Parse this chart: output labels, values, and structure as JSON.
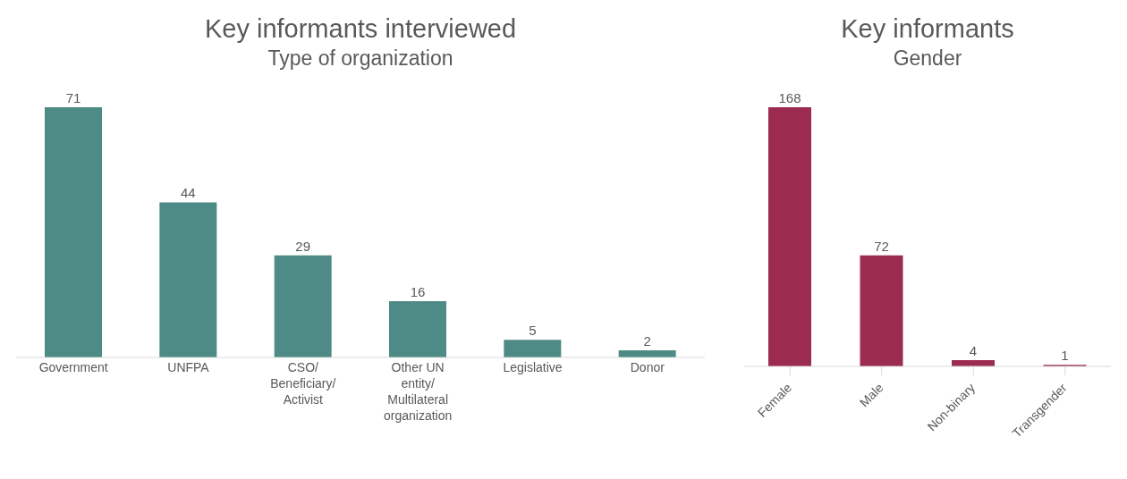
{
  "chart_data": [
    {
      "type": "bar",
      "title": "Key informants interviewed",
      "subtitle": "Type of organization",
      "categories": [
        "Government",
        "UNFPA",
        "CSO/ Beneficiary/ Activist",
        "Other UN entity/ Multilateral organization",
        "Legislative",
        "Donor"
      ],
      "values": [
        71,
        44,
        29,
        16,
        5,
        2
      ],
      "color": "#4e8b86",
      "data_labels": true,
      "grid": false,
      "legend": false,
      "tick_labels": "x"
    },
    {
      "type": "bar",
      "title": "Key informants",
      "subtitle": "Gender",
      "categories": [
        "Female",
        "Male",
        "Non-binary",
        "Transgender"
      ],
      "values": [
        168,
        72,
        4,
        1
      ],
      "color": "#9b2c50",
      "data_labels": true,
      "grid": false,
      "legend": false,
      "tick_labels": "x"
    }
  ]
}
